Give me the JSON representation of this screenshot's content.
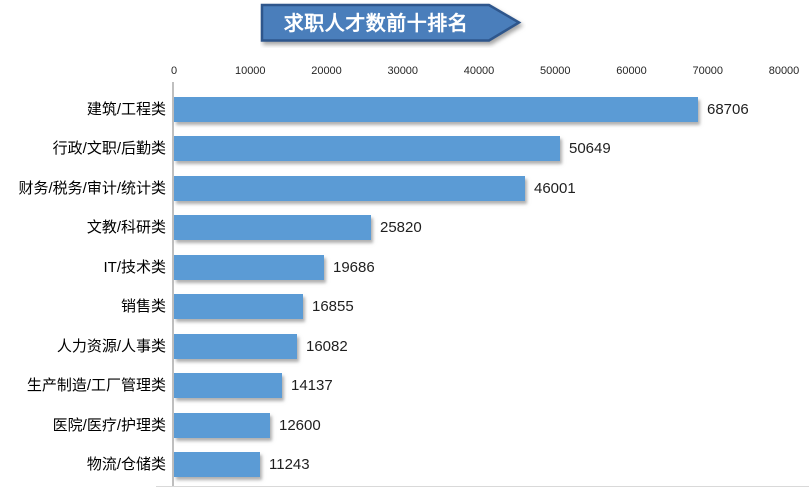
{
  "title_banner": {
    "label": "求职人才数前十排名"
  },
  "colors": {
    "bar": "#5B9BD5",
    "banner_fill": "#4A7EBB",
    "banner_border": "#2E568C",
    "category_axis_line": "#BFBFBF",
    "baseline": "#D9D9D9",
    "axis_text": "#262626",
    "value_text": "#1F1F1F",
    "title_text": "#FFFFFF"
  },
  "chart_data": {
    "type": "bar",
    "orientation": "horizontal",
    "title": "求职人才数前十排名",
    "categories": [
      "建筑/工程类",
      "行政/文职/后勤类",
      "财务/税务/审计/统计类",
      "文教/科研类",
      "IT/技术类",
      "销售类",
      "人力资源/人事类",
      "生产制造/工厂管理类",
      "医院/医疗/护理类",
      "物流/仓储类"
    ],
    "values": [
      68706,
      50649,
      46001,
      25820,
      19686,
      16855,
      16082,
      14137,
      12600,
      11243
    ],
    "value_labels": true,
    "xlim": [
      0,
      80000
    ],
    "x_ticks": [
      0,
      10000,
      20000,
      30000,
      40000,
      50000,
      60000,
      70000,
      80000
    ],
    "grid": false,
    "legend": "none"
  }
}
